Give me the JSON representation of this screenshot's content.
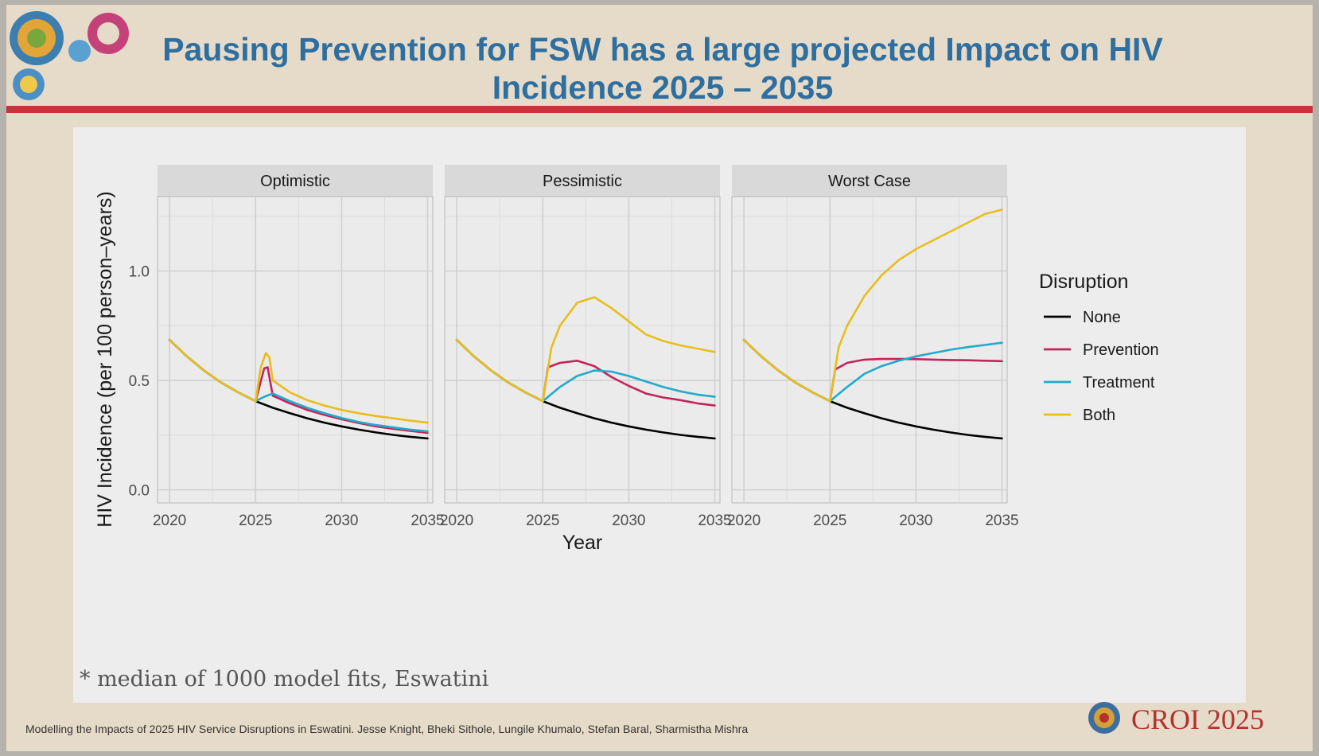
{
  "title_line1": "Pausing Prevention for FSW has a large projected Impact on HIV",
  "title_line2": "Incidence 2025 – 2035",
  "footnote": "* median of 1000 model fits, Eswatini",
  "citation": "Modelling the Impacts of 2025 HIV Service Disruptions in Eswatini. Jesse Knight, Bheki Sithole, Lungile Khumalo, Stefan Baral, Sharmistha Mishra",
  "logo_text": "CROI 2025",
  "colors": {
    "None": "#000000",
    "Prevention": "#c2255c",
    "Treatment": "#22aacc",
    "Both": "#e8be1c",
    "title": "#2e6fa0",
    "rule": "#c8323a"
  },
  "chart_data": {
    "type": "line",
    "title": "",
    "xlabel": "Year",
    "ylabel": "HIV Incidence (per 100 person–years)",
    "xlim": [
      2019.3,
      2035.3
    ],
    "ylim": [
      -0.06,
      1.34
    ],
    "x_ticks": [
      2020,
      2025,
      2030,
      2035
    ],
    "y_ticks": [
      0.0,
      0.5,
      1.0
    ],
    "y_tick_labels": [
      "0.0",
      "0.5",
      "1.0"
    ],
    "grid": true,
    "legend": {
      "title": "Disruption",
      "placement": "right",
      "entries": [
        "None",
        "Prevention",
        "Treatment",
        "Both"
      ]
    },
    "facets": [
      {
        "name": "Optimistic",
        "series": [
          {
            "name": "None",
            "points": [
              [
                2020,
                0.685
              ],
              [
                2021,
                0.61
              ],
              [
                2022,
                0.545
              ],
              [
                2023,
                0.49
              ],
              [
                2024,
                0.445
              ],
              [
                2025,
                0.405
              ],
              [
                2026,
                0.375
              ],
              [
                2027,
                0.35
              ],
              [
                2028,
                0.327
              ],
              [
                2029,
                0.307
              ],
              [
                2030,
                0.29
              ],
              [
                2031,
                0.275
              ],
              [
                2032,
                0.262
              ],
              [
                2033,
                0.251
              ],
              [
                2034,
                0.242
              ],
              [
                2035,
                0.235
              ]
            ]
          },
          {
            "name": "Prevention",
            "points": [
              [
                2020,
                0.685
              ],
              [
                2021,
                0.61
              ],
              [
                2022,
                0.545
              ],
              [
                2023,
                0.49
              ],
              [
                2024,
                0.445
              ],
              [
                2025,
                0.405
              ],
              [
                2025.5,
                0.555
              ],
              [
                2025.7,
                0.56
              ],
              [
                2026,
                0.43
              ],
              [
                2027,
                0.395
              ],
              [
                2028,
                0.365
              ],
              [
                2029,
                0.342
              ],
              [
                2030,
                0.322
              ],
              [
                2031,
                0.305
              ],
              [
                2032,
                0.29
              ],
              [
                2033,
                0.279
              ],
              [
                2034,
                0.269
              ],
              [
                2035,
                0.26
              ]
            ]
          },
          {
            "name": "Treatment",
            "points": [
              [
                2020,
                0.685
              ],
              [
                2021,
                0.61
              ],
              [
                2022,
                0.545
              ],
              [
                2023,
                0.49
              ],
              [
                2024,
                0.445
              ],
              [
                2025,
                0.405
              ],
              [
                2025.5,
                0.425
              ],
              [
                2026,
                0.44
              ],
              [
                2027,
                0.405
              ],
              [
                2028,
                0.375
              ],
              [
                2029,
                0.35
              ],
              [
                2030,
                0.328
              ],
              [
                2031,
                0.31
              ],
              [
                2032,
                0.296
              ],
              [
                2033,
                0.285
              ],
              [
                2034,
                0.275
              ],
              [
                2035,
                0.267
              ]
            ]
          },
          {
            "name": "Both",
            "points": [
              [
                2020,
                0.685
              ],
              [
                2021,
                0.61
              ],
              [
                2022,
                0.545
              ],
              [
                2023,
                0.49
              ],
              [
                2024,
                0.445
              ],
              [
                2025,
                0.405
              ],
              [
                2025.3,
                0.56
              ],
              [
                2025.6,
                0.625
              ],
              [
                2025.8,
                0.605
              ],
              [
                2026,
                0.5
              ],
              [
                2027,
                0.445
              ],
              [
                2028,
                0.41
              ],
              [
                2029,
                0.385
              ],
              [
                2030,
                0.365
              ],
              [
                2031,
                0.35
              ],
              [
                2032,
                0.337
              ],
              [
                2033,
                0.327
              ],
              [
                2034,
                0.316
              ],
              [
                2035,
                0.307
              ]
            ]
          }
        ]
      },
      {
        "name": "Pessimistic",
        "series": [
          {
            "name": "None",
            "points": [
              [
                2020,
                0.685
              ],
              [
                2021,
                0.61
              ],
              [
                2022,
                0.545
              ],
              [
                2023,
                0.49
              ],
              [
                2024,
                0.445
              ],
              [
                2025,
                0.405
              ],
              [
                2026,
                0.375
              ],
              [
                2027,
                0.35
              ],
              [
                2028,
                0.327
              ],
              [
                2029,
                0.307
              ],
              [
                2030,
                0.29
              ],
              [
                2031,
                0.275
              ],
              [
                2032,
                0.262
              ],
              [
                2033,
                0.251
              ],
              [
                2034,
                0.242
              ],
              [
                2035,
                0.235
              ]
            ]
          },
          {
            "name": "Prevention",
            "points": [
              [
                2020,
                0.685
              ],
              [
                2021,
                0.61
              ],
              [
                2022,
                0.545
              ],
              [
                2023,
                0.49
              ],
              [
                2024,
                0.445
              ],
              [
                2025,
                0.405
              ],
              [
                2025.3,
                0.56
              ],
              [
                2026,
                0.58
              ],
              [
                2027,
                0.59
              ],
              [
                2028,
                0.565
              ],
              [
                2029,
                0.515
              ],
              [
                2030,
                0.475
              ],
              [
                2031,
                0.44
              ],
              [
                2032,
                0.422
              ],
              [
                2033,
                0.41
              ],
              [
                2034,
                0.395
              ],
              [
                2035,
                0.385
              ]
            ]
          },
          {
            "name": "Treatment",
            "points": [
              [
                2020,
                0.685
              ],
              [
                2021,
                0.61
              ],
              [
                2022,
                0.545
              ],
              [
                2023,
                0.49
              ],
              [
                2024,
                0.445
              ],
              [
                2025,
                0.405
              ],
              [
                2026,
                0.47
              ],
              [
                2027,
                0.52
              ],
              [
                2028,
                0.545
              ],
              [
                2029,
                0.54
              ],
              [
                2030,
                0.52
              ],
              [
                2031,
                0.495
              ],
              [
                2032,
                0.47
              ],
              [
                2033,
                0.45
              ],
              [
                2034,
                0.435
              ],
              [
                2035,
                0.425
              ]
            ]
          },
          {
            "name": "Both",
            "points": [
              [
                2020,
                0.685
              ],
              [
                2021,
                0.61
              ],
              [
                2022,
                0.545
              ],
              [
                2023,
                0.49
              ],
              [
                2024,
                0.445
              ],
              [
                2025,
                0.405
              ],
              [
                2025.5,
                0.65
              ],
              [
                2026,
                0.75
              ],
              [
                2027,
                0.855
              ],
              [
                2028,
                0.88
              ],
              [
                2029,
                0.83
              ],
              [
                2030,
                0.77
              ],
              [
                2031,
                0.71
              ],
              [
                2032,
                0.68
              ],
              [
                2033,
                0.66
              ],
              [
                2034,
                0.645
              ],
              [
                2035,
                0.63
              ]
            ]
          }
        ]
      },
      {
        "name": "Worst Case",
        "series": [
          {
            "name": "None",
            "points": [
              [
                2020,
                0.685
              ],
              [
                2021,
                0.61
              ],
              [
                2022,
                0.545
              ],
              [
                2023,
                0.49
              ],
              [
                2024,
                0.445
              ],
              [
                2025,
                0.405
              ],
              [
                2026,
                0.375
              ],
              [
                2027,
                0.35
              ],
              [
                2028,
                0.327
              ],
              [
                2029,
                0.307
              ],
              [
                2030,
                0.29
              ],
              [
                2031,
                0.275
              ],
              [
                2032,
                0.262
              ],
              [
                2033,
                0.251
              ],
              [
                2034,
                0.242
              ],
              [
                2035,
                0.235
              ]
            ]
          },
          {
            "name": "Prevention",
            "points": [
              [
                2020,
                0.685
              ],
              [
                2021,
                0.61
              ],
              [
                2022,
                0.545
              ],
              [
                2023,
                0.49
              ],
              [
                2024,
                0.445
              ],
              [
                2025,
                0.405
              ],
              [
                2025.3,
                0.55
              ],
              [
                2026,
                0.58
              ],
              [
                2027,
                0.595
              ],
              [
                2028,
                0.598
              ],
              [
                2029,
                0.598
              ],
              [
                2030,
                0.597
              ],
              [
                2031,
                0.595
              ],
              [
                2032,
                0.593
              ],
              [
                2033,
                0.592
              ],
              [
                2034,
                0.59
              ],
              [
                2035,
                0.588
              ]
            ]
          },
          {
            "name": "Treatment",
            "points": [
              [
                2020,
                0.685
              ],
              [
                2021,
                0.61
              ],
              [
                2022,
                0.545
              ],
              [
                2023,
                0.49
              ],
              [
                2024,
                0.445
              ],
              [
                2025,
                0.405
              ],
              [
                2026,
                0.47
              ],
              [
                2027,
                0.53
              ],
              [
                2028,
                0.565
              ],
              [
                2029,
                0.59
              ],
              [
                2030,
                0.61
              ],
              [
                2031,
                0.625
              ],
              [
                2032,
                0.64
              ],
              [
                2033,
                0.652
              ],
              [
                2034,
                0.662
              ],
              [
                2035,
                0.672
              ]
            ]
          },
          {
            "name": "Both",
            "points": [
              [
                2020,
                0.685
              ],
              [
                2021,
                0.61
              ],
              [
                2022,
                0.545
              ],
              [
                2023,
                0.49
              ],
              [
                2024,
                0.445
              ],
              [
                2025,
                0.405
              ],
              [
                2025.5,
                0.65
              ],
              [
                2026,
                0.75
              ],
              [
                2027,
                0.885
              ],
              [
                2028,
                0.98
              ],
              [
                2029,
                1.05
              ],
              [
                2030,
                1.1
              ],
              [
                2031,
                1.14
              ],
              [
                2032,
                1.18
              ],
              [
                2033,
                1.22
              ],
              [
                2034,
                1.26
              ],
              [
                2035,
                1.28
              ]
            ]
          }
        ]
      }
    ]
  }
}
